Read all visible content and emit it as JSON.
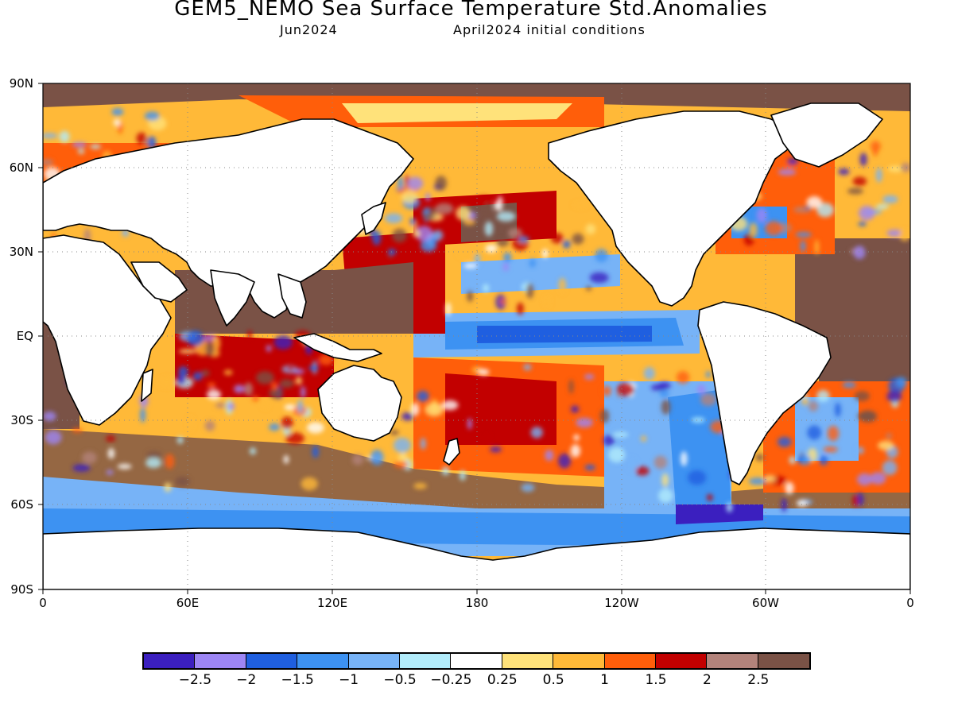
{
  "title": "GEM5_NEMO Sea Surface Temperature Std.Anomalies",
  "subtitle_left": "Jun2024",
  "subtitle_right": "April2024 initial conditions",
  "map": {
    "type": "world_map_anomaly",
    "land_color": "#ffffff",
    "coastline_color": "#000000",
    "graticule": "dotted",
    "lat_labels": [
      "90N",
      "60N",
      "30N",
      "EQ",
      "30S",
      "60S",
      "90S"
    ],
    "lon_labels": [
      "0",
      "60E",
      "120E",
      "180",
      "120W",
      "60W",
      "0"
    ]
  },
  "legend": {
    "colors": [
      "#3b1fbf",
      "#9d86f5",
      "#1f5fe0",
      "#3d92f2",
      "#77b3f7",
      "#b2ecfb",
      "#ffffff",
      "#ffe27a",
      "#ffb938",
      "#ff5e0a",
      "#c20000",
      "#b3837b",
      "#7a5246"
    ],
    "labels": [
      "−2.5",
      "−2",
      "−1.5",
      "−1",
      "−0.5",
      "−0.25",
      "0.25",
      "0.5",
      "1",
      "1.5",
      "2",
      "2.5"
    ]
  }
}
